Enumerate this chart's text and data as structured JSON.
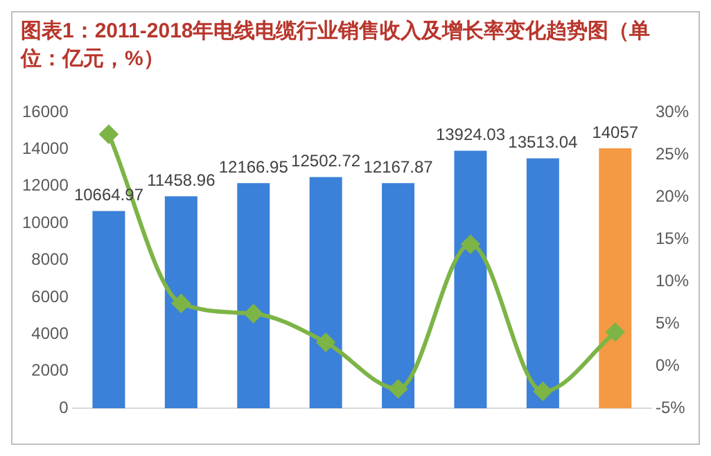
{
  "chart_data": {
    "type": "bar",
    "title": "图表1：2011-2018年电线电缆行业销售收入及增长率变化趋势图（单位：亿元，%）",
    "categories": [
      null,
      null,
      null,
      null,
      null,
      null,
      null,
      null
    ],
    "series": [
      {
        "colors": [
          "#3b80d9",
          "#3b80d9",
          "#3b80d9",
          "#3b80d9",
          "#3b80d9",
          "#3b80d9",
          "#3b80d9",
          "#f59a44"
        ],
        "values": [
          10664.97,
          11458.96,
          12166.95,
          12502.72,
          12167.87,
          13924.03,
          13513.04,
          14057
        ],
        "value_labels": [
          "10664.97",
          "11458.96",
          "12166.95",
          "12502.72",
          "12167.87",
          "13924.03",
          "13513.04",
          "14057"
        ]
      },
      {
        "type": "line",
        "axis": "y2",
        "color": "#7db446",
        "marker": "diamond",
        "values": [
          27.4,
          7.4,
          6.2,
          2.8,
          -2.7,
          14.4,
          -3.0,
          4.0
        ]
      }
    ],
    "ylim": [
      0,
      16000
    ],
    "yticks": [
      0,
      2000,
      4000,
      6000,
      8000,
      10000,
      12000,
      14000,
      16000
    ],
    "y2lim": [
      -5,
      30
    ],
    "y2ticks": [
      {
        "value": -5,
        "label": "-5%"
      },
      {
        "value": 0,
        "label": "0%"
      },
      {
        "value": 5,
        "label": "5%"
      },
      {
        "value": 10,
        "label": "10%"
      },
      {
        "value": 15,
        "label": "15%"
      },
      {
        "value": 20,
        "label": "20%"
      },
      {
        "value": 25,
        "label": "25%"
      },
      {
        "value": 30,
        "label": "30%"
      }
    ],
    "grid": false,
    "legend": false
  }
}
